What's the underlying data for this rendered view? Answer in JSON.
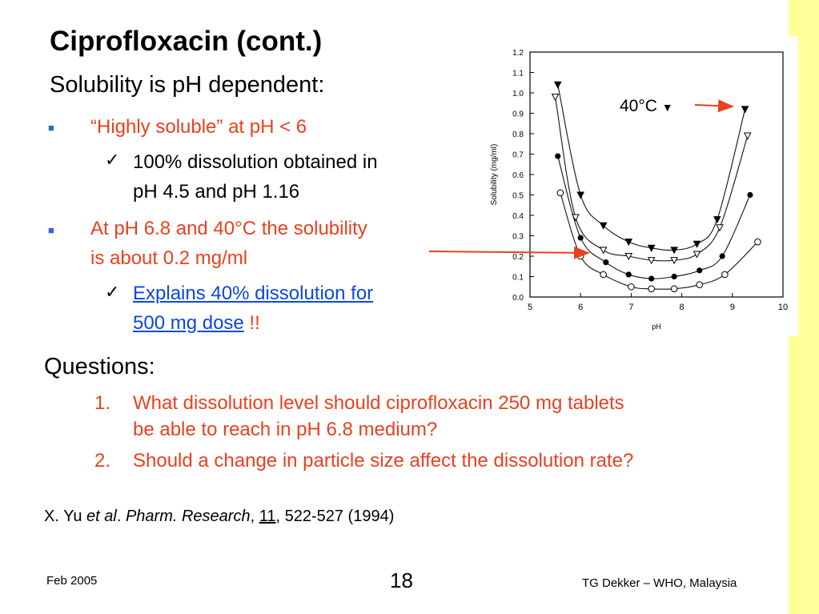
{
  "slide": {
    "title": "Ciprofloxacin (cont.)",
    "subtitle": "Solubility is pH dependent:",
    "bullets": [
      {
        "text": "“Highly soluble” at pH < 6"
      },
      {
        "check_line1": "100% dissolution obtained in",
        "check_line2": "pH 4.5 and pH 1.16"
      },
      {
        "line1": "At pH 6.8 and 40°C the solubility",
        "line2": "is about 0.2 mg/ml"
      },
      {
        "link_line1": "Explains 40% dissolution for",
        "link_line2": "500 mg dose",
        "suffix": " !!"
      }
    ],
    "questions_heading": "Questions:",
    "questions": [
      {
        "num": "1.",
        "line1": "What dissolution level should ciprofloxacin 250 mg tablets",
        "line2": "be able to reach in pH 6.8 medium?"
      },
      {
        "num": "2.",
        "line1": "Should a change in particle size affect the dissolution rate?"
      }
    ],
    "reference": {
      "author": "X. Yu ",
      "etal": "et al",
      "dot": ". ",
      "journal": "Pharm. Research",
      "comma": ", ",
      "volume": "11",
      "rest": ", 522-527 (1994)"
    },
    "footer": {
      "date": "Feb 2005",
      "page": "18",
      "org": "TG Dekker – WHO, Malaysia"
    },
    "annotation": {
      "label": "40°C",
      "marker": "▼"
    },
    "colors": {
      "accent_red": "#e8411f",
      "link_blue": "#0a47e0",
      "bullet_blue": "#3366cc",
      "side_strip": "#ffff99"
    }
  },
  "chart_data": {
    "type": "scatter",
    "xlabel": "pH",
    "ylabel": "Solubility (mg/ml)",
    "xlim": [
      5,
      10
    ],
    "ylim": [
      0.0,
      1.2
    ],
    "xticks": [
      "5",
      "6",
      "7",
      "8",
      "9",
      "10"
    ],
    "yticks": [
      "0.0",
      "0.1",
      "0.2",
      "0.3",
      "0.4",
      "0.5",
      "0.6",
      "0.7",
      "0.8",
      "0.9",
      "1.0",
      "1.1",
      "1.2"
    ],
    "grid": false,
    "series": [
      {
        "marker": "filled-triangle-down",
        "x": [
          5.55,
          6.0,
          6.45,
          6.95,
          7.4,
          7.85,
          8.3,
          8.7,
          9.25
        ],
        "y": [
          1.04,
          0.5,
          0.35,
          0.27,
          0.24,
          0.23,
          0.26,
          0.38,
          0.92
        ]
      },
      {
        "marker": "open-triangle-down",
        "x": [
          5.5,
          5.9,
          6.45,
          6.95,
          7.4,
          7.85,
          8.3,
          8.75,
          9.3
        ],
        "y": [
          0.98,
          0.39,
          0.23,
          0.2,
          0.18,
          0.18,
          0.21,
          0.34,
          0.79
        ]
      },
      {
        "marker": "filled-circle",
        "x": [
          5.55,
          6.0,
          6.5,
          6.95,
          7.4,
          7.85,
          8.35,
          8.8,
          9.35
        ],
        "y": [
          0.69,
          0.29,
          0.17,
          0.11,
          0.09,
          0.1,
          0.13,
          0.2,
          0.5
        ]
      },
      {
        "marker": "open-circle",
        "x": [
          5.6,
          6.0,
          6.45,
          7.0,
          7.4,
          7.85,
          8.35,
          8.85,
          9.5
        ],
        "y": [
          0.51,
          0.2,
          0.11,
          0.05,
          0.04,
          0.04,
          0.06,
          0.11,
          0.27
        ]
      }
    ]
  }
}
